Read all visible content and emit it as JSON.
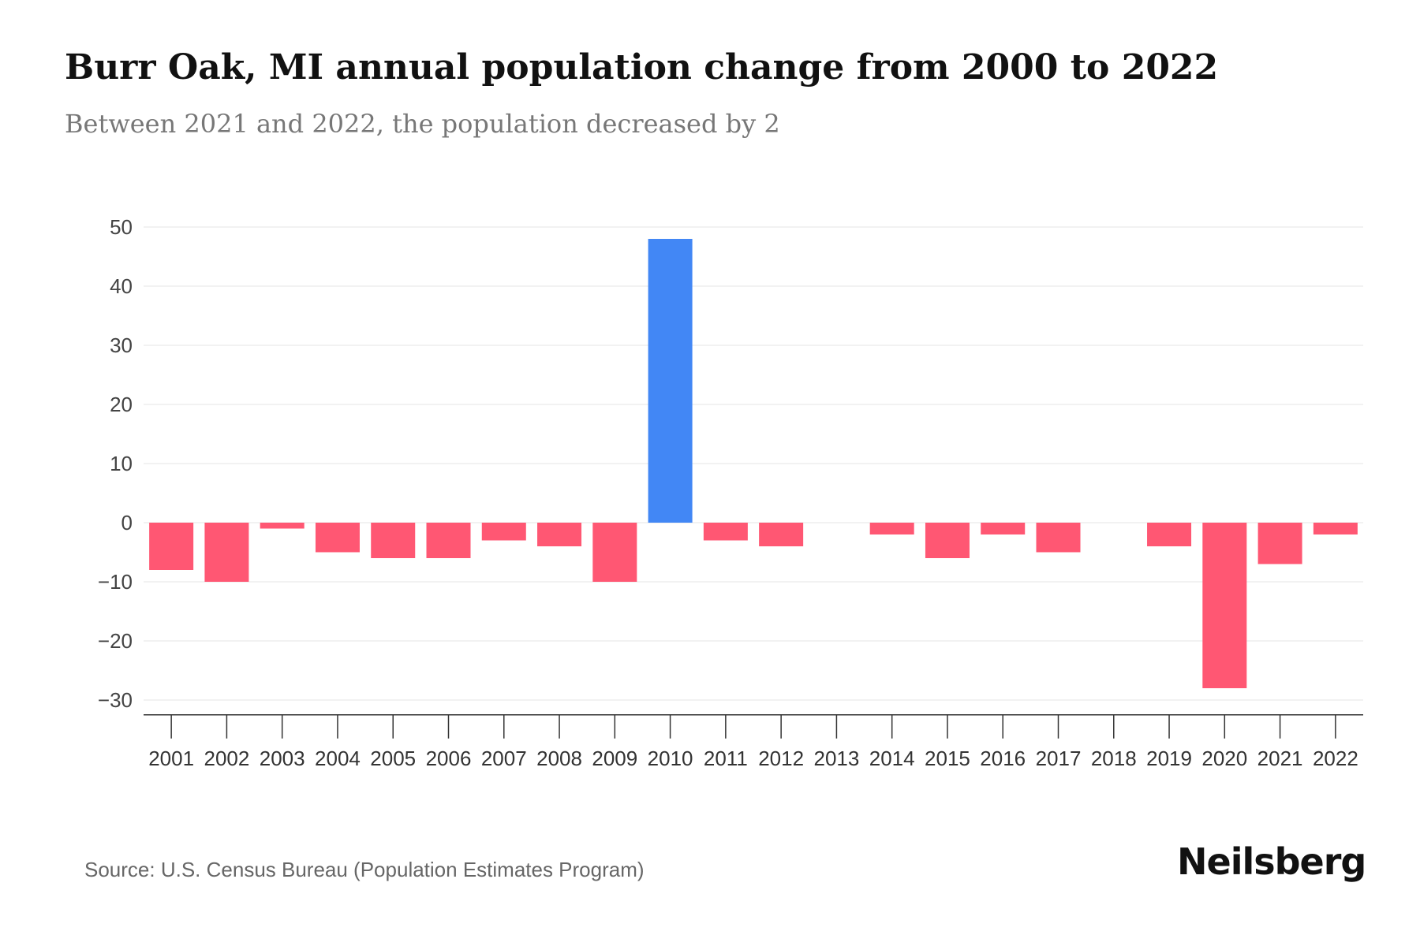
{
  "title": "Burr Oak, MI annual population change from 2000 to 2022",
  "subtitle": "Between 2021 and 2022, the population decreased by 2",
  "source": "Source: U.S. Census Bureau (Population Estimates Program)",
  "brand": "Neilsberg",
  "colors": {
    "positive": "#4287f5",
    "negative": "#ff5773",
    "grid": "#e6e6e6",
    "axis": "#333333"
  },
  "chart_data": {
    "type": "bar",
    "categories": [
      "2001",
      "2002",
      "2003",
      "2004",
      "2005",
      "2006",
      "2007",
      "2008",
      "2009",
      "2010",
      "2011",
      "2012",
      "2013",
      "2014",
      "2015",
      "2016",
      "2017",
      "2018",
      "2019",
      "2020",
      "2021",
      "2022"
    ],
    "values": [
      -8,
      -10,
      -1,
      -5,
      -6,
      -6,
      -3,
      -4,
      -10,
      48,
      -3,
      -4,
      0,
      -2,
      -6,
      -2,
      -5,
      0,
      -4,
      -28,
      -7,
      -2
    ],
    "yticks": [
      50,
      40,
      30,
      20,
      10,
      0,
      -10,
      -20,
      -30
    ],
    "ylim": [
      -32.5,
      50
    ],
    "grid": true,
    "legend": "none"
  }
}
